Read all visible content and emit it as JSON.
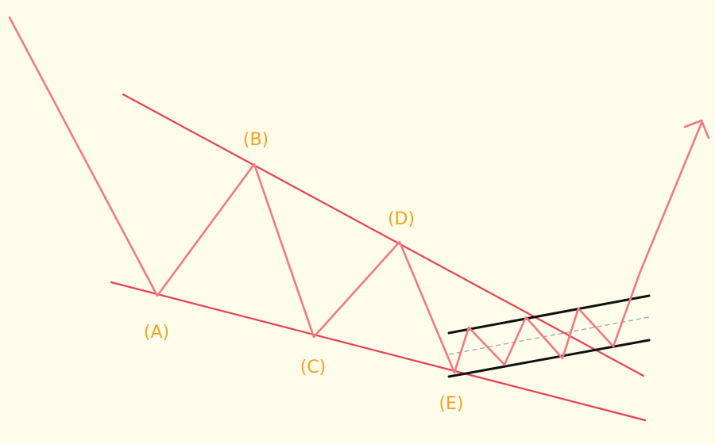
{
  "colors": {
    "background": "#fefdeb",
    "price_path": "#f07a80",
    "trendline": "#e8414f",
    "channel": "#111111",
    "midline": "#9aa3b0",
    "label": "#f5a21b"
  },
  "labels": {
    "a": "(A)",
    "b": "(B)",
    "c": "(C)",
    "d": "(D)",
    "e": "(E)"
  }
}
